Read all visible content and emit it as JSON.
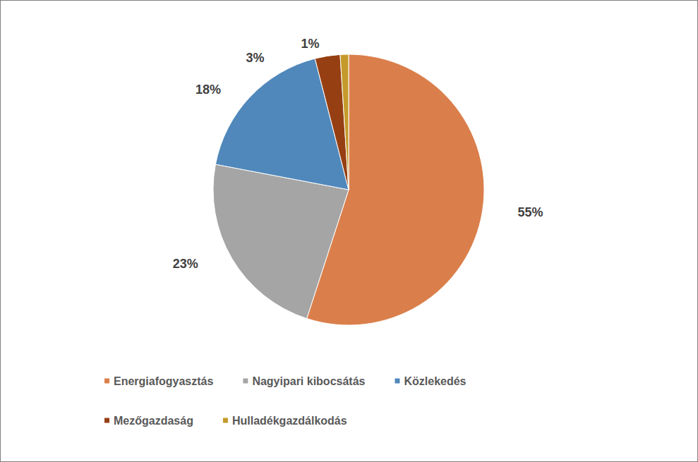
{
  "chart_data": {
    "type": "pie",
    "categories": [
      "Energiafogyasztás",
      "Nagyipari kibocsátás",
      "Közlekedés",
      "Mezőgazdaság",
      "Hulladékgazdálkodás"
    ],
    "values": [
      55,
      23,
      18,
      3,
      1
    ],
    "value_labels": [
      "55%",
      "23%",
      "18%",
      "3%",
      "1%"
    ],
    "colors": [
      "#da7f4b",
      "#a5a5a5",
      "#5088bb",
      "#963f13",
      "#c49a2a"
    ],
    "data_labels": true,
    "legend": "bottom"
  }
}
